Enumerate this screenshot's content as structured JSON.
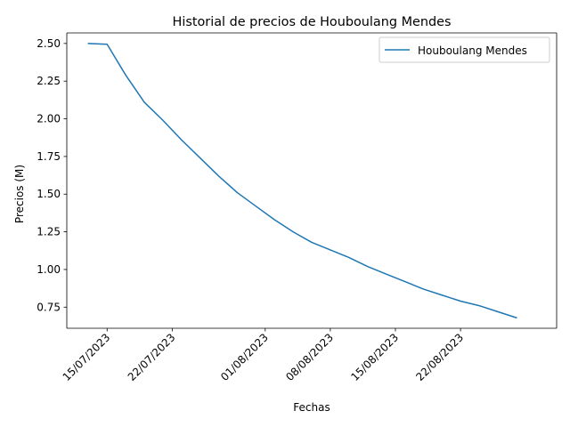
{
  "chart_data": {
    "type": "line",
    "title": "Historial de precios de Houboulang Mendes",
    "xlabel": "Fechas",
    "ylabel": "Precios (M)",
    "x_tick_labels": [
      "15/07/2023",
      "22/07/2023",
      "01/08/2023",
      "08/08/2023",
      "15/08/2023",
      "22/08/2023"
    ],
    "x_tick_dates": [
      "2023-07-15",
      "2023-07-22",
      "2023-08-01",
      "2023-08-08",
      "2023-08-15",
      "2023-08-22"
    ],
    "y_tick_labels": [
      "0.75",
      "1.00",
      "1.25",
      "1.50",
      "1.75",
      "2.00",
      "2.25",
      "2.50"
    ],
    "ylim": [
      0.61,
      2.57
    ],
    "xlim": [
      "2023-07-10T16:00",
      "2023-09-01T08:00"
    ],
    "grid": false,
    "legend_position": "upper right",
    "series": [
      {
        "name": "Houboulang Mendes",
        "color": "#1f77b4",
        "x": [
          "2023-07-13",
          "2023-07-15",
          "2023-07-17",
          "2023-07-19",
          "2023-07-21",
          "2023-07-23",
          "2023-07-25",
          "2023-07-27",
          "2023-07-29",
          "2023-07-31",
          "2023-08-02",
          "2023-08-04",
          "2023-08-06",
          "2023-08-08",
          "2023-08-10",
          "2023-08-12",
          "2023-08-14",
          "2023-08-16",
          "2023-08-18",
          "2023-08-20",
          "2023-08-22",
          "2023-08-24",
          "2023-08-26",
          "2023-08-28"
        ],
        "y": [
          2.5,
          2.495,
          2.29,
          2.11,
          1.99,
          1.86,
          1.74,
          1.62,
          1.51,
          1.42,
          1.33,
          1.25,
          1.18,
          1.13,
          1.08,
          1.02,
          0.97,
          0.92,
          0.87,
          0.83,
          0.79,
          0.76,
          0.72,
          0.68
        ]
      }
    ]
  }
}
